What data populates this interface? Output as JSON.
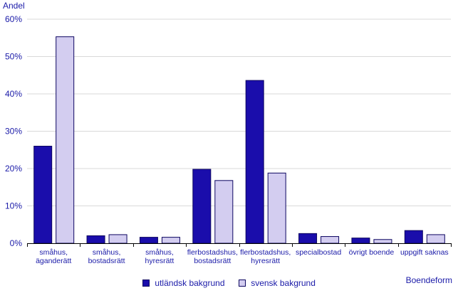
{
  "chart_data": {
    "type": "bar",
    "title": "",
    "ylabel": "Andel",
    "xlabel": "Boendeform",
    "ylim": [
      0,
      60
    ],
    "yticks": [
      0,
      10,
      20,
      30,
      40,
      50,
      60
    ],
    "ytick_labels": [
      "0%",
      "10%",
      "20%",
      "30%",
      "40%",
      "50%",
      "60%"
    ],
    "grid": true,
    "legend_position": "bottom",
    "categories": [
      [
        "småhus,",
        "äganderätt"
      ],
      [
        "småhus,",
        "bostadsrätt"
      ],
      [
        "småhus,",
        "hyresrätt"
      ],
      [
        "flerbostadshus,",
        "bostadsrätt"
      ],
      [
        "flerbostadshus,",
        "hyresrätt"
      ],
      [
        "specialbostad"
      ],
      [
        "övrigt boende"
      ],
      [
        "uppgift saknas"
      ]
    ],
    "series": [
      {
        "name": "utländsk bakgrund",
        "color": "#1a0dab",
        "stroke": "#0d0660",
        "values": [
          26.0,
          2.0,
          1.6,
          19.8,
          43.6,
          2.6,
          1.4,
          3.4
        ]
      },
      {
        "name": "svensk bakgrund",
        "color": "#d3cdf0",
        "stroke": "#0d0660",
        "values": [
          55.3,
          2.3,
          1.6,
          16.8,
          18.8,
          1.8,
          1.0,
          2.3
        ]
      }
    ],
    "colors": {
      "text": "#1a1aa8",
      "grid": "#d9d9d9",
      "axis": "#000000"
    }
  }
}
